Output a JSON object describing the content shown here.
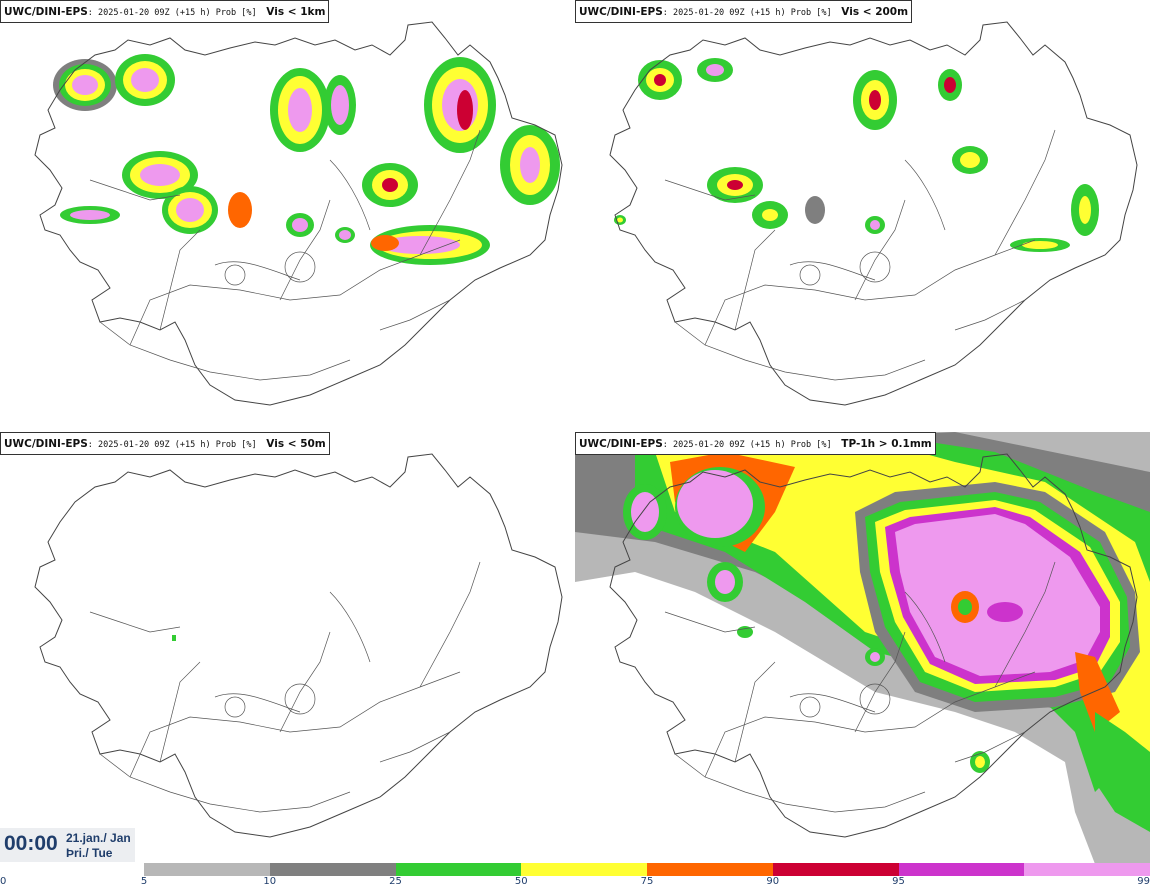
{
  "panels": [
    {
      "model": "UWC/DINI-EPS",
      "meta": ": 2025-01-20 09Z (+15 h) Prob [%]",
      "variable": "Vis < 1km"
    },
    {
      "model": "UWC/DINI-EPS",
      "meta": ": 2025-01-20 09Z (+15 h) Prob [%]",
      "variable": "Vis < 200m"
    },
    {
      "model": "UWC/DINI-EPS",
      "meta": ": 2025-01-20 09Z (+15 h) Prob [%]",
      "variable": "Vis < 50m"
    },
    {
      "model": "UWC/DINI-EPS",
      "meta": ": 2025-01-20 09Z (+15 h) Prob [%]",
      "variable": "TP-1h > 0.1mm"
    }
  ],
  "clock": {
    "time": "00:00",
    "date_line1": "21.jan./ Jan",
    "date_line2": "Þri./ Tue"
  },
  "colorbar": {
    "ticks": [
      "0",
      "5",
      "10",
      "25",
      "50",
      "75",
      "90",
      "95",
      "99"
    ],
    "colors": [
      "#b7b7b7",
      "#7f7f7f",
      "#33cc33",
      "#ffff33",
      "#ff6600",
      "#cc0033",
      "#cc33cc",
      "#ee99ee"
    ]
  },
  "colors": {
    "light_gray": "#b7b7b7",
    "dark_gray": "#7f7f7f",
    "green": "#33cc33",
    "yellow": "#ffff33",
    "orange": "#ff6600",
    "red": "#cc0033",
    "purple": "#cc33cc",
    "pink": "#ee99ee"
  },
  "map_icon": "iceland-outline-map"
}
